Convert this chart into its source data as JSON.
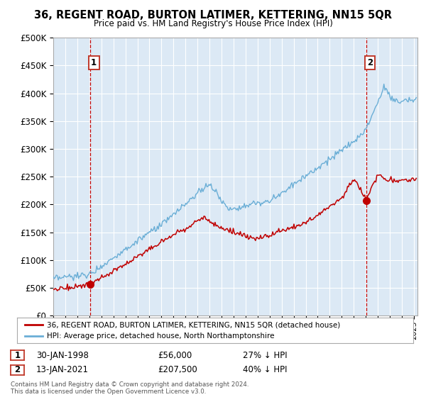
{
  "title": "36, REGENT ROAD, BURTON LATIMER, KETTERING, NN15 5QR",
  "subtitle": "Price paid vs. HM Land Registry's House Price Index (HPI)",
  "ylim": [
    0,
    500000
  ],
  "yticks": [
    0,
    50000,
    100000,
    150000,
    200000,
    250000,
    300000,
    350000,
    400000,
    450000,
    500000
  ],
  "xlim_start": 1995.0,
  "xlim_end": 2025.3,
  "sale1_x": 1998.08,
  "sale1_y": 56000,
  "sale1_label": "1",
  "sale2_x": 2021.04,
  "sale2_y": 207500,
  "sale2_label": "2",
  "hpi_color": "#6aaed6",
  "price_color": "#c00000",
  "annotation_box_color": "#c0392b",
  "plot_bg_color": "#dce9f5",
  "legend_price_label": "36, REGENT ROAD, BURTON LATIMER, KETTERING, NN15 5QR (detached house)",
  "legend_hpi_label": "HPI: Average price, detached house, North Northamptonshire",
  "table_row1": [
    "1",
    "30-JAN-1998",
    "£56,000",
    "27% ↓ HPI"
  ],
  "table_row2": [
    "2",
    "13-JAN-2021",
    "£207,500",
    "40% ↓ HPI"
  ],
  "footnote": "Contains HM Land Registry data © Crown copyright and database right 2024.\nThis data is licensed under the Open Government Licence v3.0.",
  "background_color": "#ffffff",
  "grid_color": "#ffffff"
}
